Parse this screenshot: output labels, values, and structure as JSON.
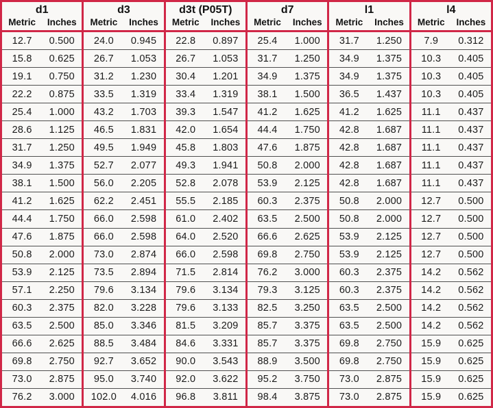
{
  "colors": {
    "border_red": "#d02747",
    "row_line": "#4f4f4f",
    "text": "#1a1a1a",
    "background": "#f9f8f6"
  },
  "table": {
    "groups": [
      {
        "title": "d1",
        "metric_label": "Metric",
        "inches_label": "Inches",
        "rows": [
          [
            "12.7",
            "0.500"
          ],
          [
            "15.8",
            "0.625"
          ],
          [
            "19.1",
            "0.750"
          ],
          [
            "22.2",
            "0.875"
          ],
          [
            "25.4",
            "1.000"
          ],
          [
            "28.6",
            "1.125"
          ],
          [
            "31.7",
            "1.250"
          ],
          [
            "34.9",
            "1.375"
          ],
          [
            "38.1",
            "1.500"
          ],
          [
            "41.2",
            "1.625"
          ],
          [
            "44.4",
            "1.750"
          ],
          [
            "47.6",
            "1.875"
          ],
          [
            "50.8",
            "2.000"
          ],
          [
            "53.9",
            "2.125"
          ],
          [
            "57.1",
            "2.250"
          ],
          [
            "60.3",
            "2.375"
          ],
          [
            "63.5",
            "2.500"
          ],
          [
            "66.6",
            "2.625"
          ],
          [
            "69.8",
            "2.750"
          ],
          [
            "73.0",
            "2.875"
          ],
          [
            "76.2",
            "3.000"
          ]
        ]
      },
      {
        "title": "d3",
        "metric_label": "Metric",
        "inches_label": "Inches",
        "rows": [
          [
            "24.0",
            "0.945"
          ],
          [
            "26.7",
            "1.053"
          ],
          [
            "31.2",
            "1.230"
          ],
          [
            "33.5",
            "1.319"
          ],
          [
            "43.2",
            "1.703"
          ],
          [
            "46.5",
            "1.831"
          ],
          [
            "49.5",
            "1.949"
          ],
          [
            "52.7",
            "2.077"
          ],
          [
            "56.0",
            "2.205"
          ],
          [
            "62.2",
            "2.451"
          ],
          [
            "66.0",
            "2.598"
          ],
          [
            "66.0",
            "2.598"
          ],
          [
            "73.0",
            "2.874"
          ],
          [
            "73.5",
            "2.894"
          ],
          [
            "79.6",
            "3.134"
          ],
          [
            "82.0",
            "3.228"
          ],
          [
            "85.0",
            "3.346"
          ],
          [
            "88.5",
            "3.484"
          ],
          [
            "92.7",
            "3.652"
          ],
          [
            "95.0",
            "3.740"
          ],
          [
            "102.0",
            "4.016"
          ]
        ]
      },
      {
        "title": "d3t (P05T)",
        "metric_label": "Metric",
        "inches_label": "Inches",
        "rows": [
          [
            "22.8",
            "0.897"
          ],
          [
            "26.7",
            "1.053"
          ],
          [
            "30.4",
            "1.201"
          ],
          [
            "33.4",
            "1.319"
          ],
          [
            "39.3",
            "1.547"
          ],
          [
            "42.0",
            "1.654"
          ],
          [
            "45.8",
            "1.803"
          ],
          [
            "49.3",
            "1.941"
          ],
          [
            "52.8",
            "2.078"
          ],
          [
            "55.5",
            "2.185"
          ],
          [
            "61.0",
            "2.402"
          ],
          [
            "64.0",
            "2.520"
          ],
          [
            "66.0",
            "2.598"
          ],
          [
            "71.5",
            "2.814"
          ],
          [
            "79.6",
            "3.134"
          ],
          [
            "79.6",
            "3.133"
          ],
          [
            "81.5",
            "3.209"
          ],
          [
            "84.6",
            "3.331"
          ],
          [
            "90.0",
            "3.543"
          ],
          [
            "92.0",
            "3.622"
          ],
          [
            "96.8",
            "3.811"
          ]
        ]
      },
      {
        "title": "d7",
        "metric_label": "Metric",
        "inches_label": "Inches",
        "rows": [
          [
            "25.4",
            "1.000"
          ],
          [
            "31.7",
            "1.250"
          ],
          [
            "34.9",
            "1.375"
          ],
          [
            "38.1",
            "1.500"
          ],
          [
            "41.2",
            "1.625"
          ],
          [
            "44.4",
            "1.750"
          ],
          [
            "47.6",
            "1.875"
          ],
          [
            "50.8",
            "2.000"
          ],
          [
            "53.9",
            "2.125"
          ],
          [
            "60.3",
            "2.375"
          ],
          [
            "63.5",
            "2.500"
          ],
          [
            "66.6",
            "2.625"
          ],
          [
            "69.8",
            "2.750"
          ],
          [
            "76.2",
            "3.000"
          ],
          [
            "79.3",
            "3.125"
          ],
          [
            "82.5",
            "3.250"
          ],
          [
            "85.7",
            "3.375"
          ],
          [
            "85.7",
            "3.375"
          ],
          [
            "88.9",
            "3.500"
          ],
          [
            "95.2",
            "3.750"
          ],
          [
            "98.4",
            "3.875"
          ]
        ]
      },
      {
        "title": "l1",
        "metric_label": "Metric",
        "inches_label": "Inches",
        "rows": [
          [
            "31.7",
            "1.250"
          ],
          [
            "34.9",
            "1.375"
          ],
          [
            "34.9",
            "1.375"
          ],
          [
            "36.5",
            "1.437"
          ],
          [
            "41.2",
            "1.625"
          ],
          [
            "42.8",
            "1.687"
          ],
          [
            "42.8",
            "1.687"
          ],
          [
            "42.8",
            "1.687"
          ],
          [
            "42.8",
            "1.687"
          ],
          [
            "50.8",
            "2.000"
          ],
          [
            "50.8",
            "2.000"
          ],
          [
            "53.9",
            "2.125"
          ],
          [
            "53.9",
            "2.125"
          ],
          [
            "60.3",
            "2.375"
          ],
          [
            "60.3",
            "2.375"
          ],
          [
            "63.5",
            "2.500"
          ],
          [
            "63.5",
            "2.500"
          ],
          [
            "69.8",
            "2.750"
          ],
          [
            "69.8",
            "2.750"
          ],
          [
            "73.0",
            "2.875"
          ],
          [
            "73.0",
            "2.875"
          ]
        ]
      },
      {
        "title": "l4",
        "metric_label": "Metric",
        "inches_label": "Inches",
        "rows": [
          [
            "7.9",
            "0.312"
          ],
          [
            "10.3",
            "0.405"
          ],
          [
            "10.3",
            "0.405"
          ],
          [
            "10.3",
            "0.405"
          ],
          [
            "11.1",
            "0.437"
          ],
          [
            "11.1",
            "0.437"
          ],
          [
            "11.1",
            "0.437"
          ],
          [
            "11.1",
            "0.437"
          ],
          [
            "11.1",
            "0.437"
          ],
          [
            "12.7",
            "0.500"
          ],
          [
            "12.7",
            "0.500"
          ],
          [
            "12.7",
            "0.500"
          ],
          [
            "12.7",
            "0.500"
          ],
          [
            "14.2",
            "0.562"
          ],
          [
            "14.2",
            "0.562"
          ],
          [
            "14.2",
            "0.562"
          ],
          [
            "14.2",
            "0.562"
          ],
          [
            "15.9",
            "0.625"
          ],
          [
            "15.9",
            "0.625"
          ],
          [
            "15.9",
            "0.625"
          ],
          [
            "15.9",
            "0.625"
          ]
        ]
      }
    ]
  }
}
